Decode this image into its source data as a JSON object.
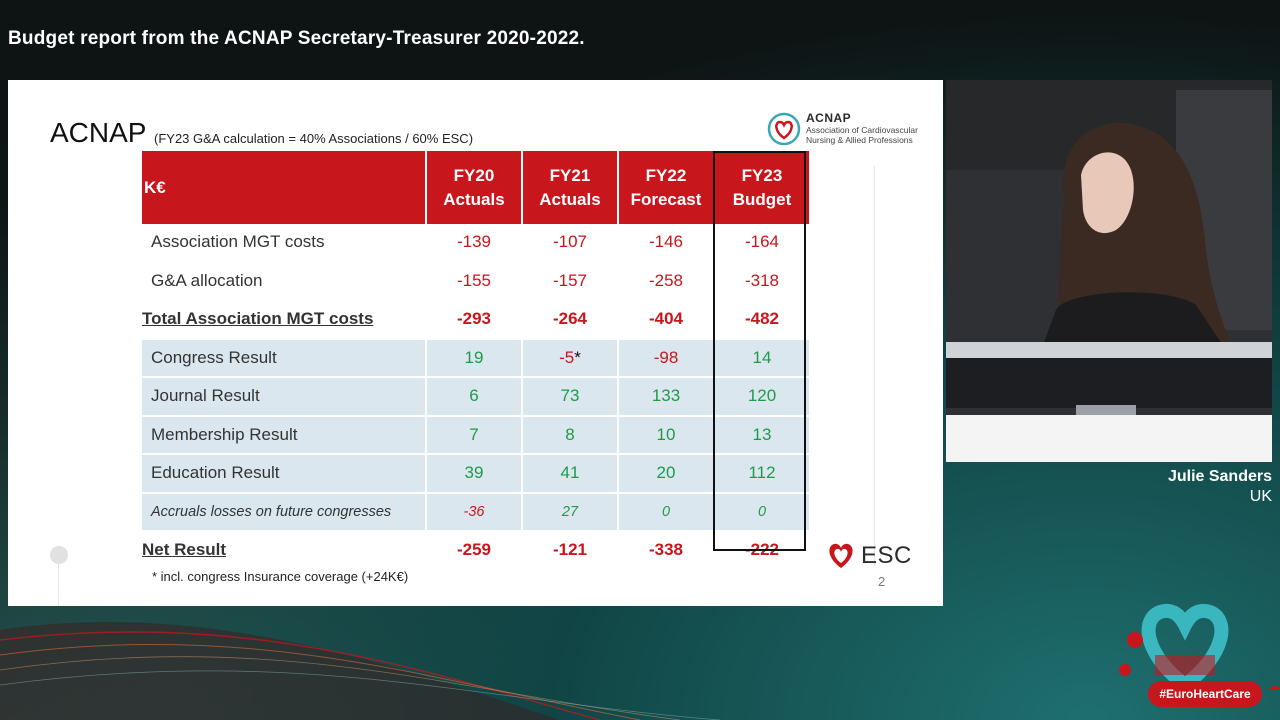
{
  "headline": "Budget report from the ACNAP Secretary-Treasurer 2020-2022.",
  "slide": {
    "title": "ACNAP",
    "subtitle": "(FY23 G&A calculation = 40% Associations / 60% ESC)",
    "logo": {
      "name": "ACNAP",
      "tagline_line1": "Association of Cardiovascular",
      "tagline_line2": "Nursing & Allied Professions"
    },
    "table": {
      "unit_header": "K€",
      "columns": [
        {
          "line1": "FY20",
          "line2": "Actuals"
        },
        {
          "line1": "FY21",
          "line2": "Actuals"
        },
        {
          "line1": "FY22",
          "line2": "Forecast"
        },
        {
          "line1": "FY23",
          "line2": "Budget"
        }
      ],
      "rows": [
        {
          "label": "Association MGT costs",
          "values": [
            "-139",
            "-107",
            "-146",
            "-164"
          ]
        },
        {
          "label": "G&A allocation",
          "values": [
            "-155",
            "-157",
            "-258",
            "-318"
          ]
        },
        {
          "label": "Total Association MGT costs",
          "values": [
            "-293",
            "-264",
            "-404",
            "-482"
          ]
        },
        {
          "label": "Congress Result",
          "values": [
            "19",
            "-5",
            "-98",
            "14"
          ],
          "note_mark": "*"
        },
        {
          "label": "Journal Result",
          "values": [
            "6",
            "73",
            "133",
            "120"
          ]
        },
        {
          "label": "Membership Result",
          "values": [
            "7",
            "8",
            "10",
            "13"
          ]
        },
        {
          "label": "Education Result",
          "values": [
            "39",
            "41",
            "20",
            "112"
          ]
        },
        {
          "label": "Accruals losses on future congresses",
          "values": [
            "-36",
            "27",
            "0",
            "0"
          ]
        },
        {
          "label": "Net Result",
          "values": [
            "-259",
            "-121",
            "-338",
            "-222"
          ]
        }
      ]
    },
    "footnote": "* incl. congress Insurance coverage (+24K€)",
    "page_number": "2",
    "esc_logo": "ESC"
  },
  "speaker": {
    "name": "Julie Sanders",
    "country": "UK"
  },
  "hashtag": "#EuroHeartCare",
  "colors": {
    "header_red": "#c8161d",
    "negative_red": "#c8161d",
    "positive_green": "#1e9a4a",
    "row_blue": "#dbe7ee"
  }
}
